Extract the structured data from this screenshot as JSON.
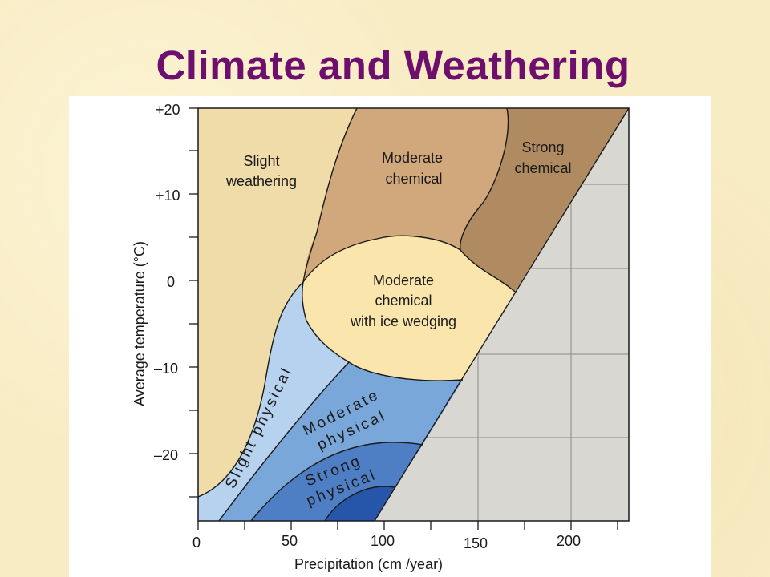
{
  "slide": {
    "title": "Climate and Weathering"
  },
  "diagram": {
    "y_axis": {
      "title": "Average temperature (°C)",
      "ticks": [
        "+20",
        "+10",
        "0",
        "–10",
        "–20"
      ]
    },
    "x_axis": {
      "title": "Precipitation (cm /year)",
      "ticks": [
        "0",
        "50",
        "100",
        "150",
        "200"
      ]
    },
    "regions": {
      "slight_weathering": [
        "Slight",
        "weathering"
      ],
      "moderate_chemical": [
        "Moderate",
        "chemical"
      ],
      "strong_chemical": [
        "Strong",
        "chemical"
      ],
      "moderate_chemical_ice": [
        "Moderate",
        "chemical",
        "with ice wedging"
      ],
      "slight_physical": [
        "Slight physical"
      ],
      "moderate_physical": [
        "Moderate",
        "physical"
      ],
      "strong_physical": [
        "Strong",
        "physical"
      ]
    },
    "colors": {
      "slight_weathering": "#f0dca8",
      "moderate_chemical": "#d1a87b",
      "strong_chemical": "#b08b62",
      "moderate_chemical_ice": "#fae6ac",
      "slight_physical": "#b6d2ee",
      "moderate_physical": "#7aa7d9",
      "strong_physical": "#4e7ec4",
      "strongest_physical": "#2556aa",
      "excluded_region": "#d9d7d2",
      "title": "#6e0f6e"
    }
  }
}
